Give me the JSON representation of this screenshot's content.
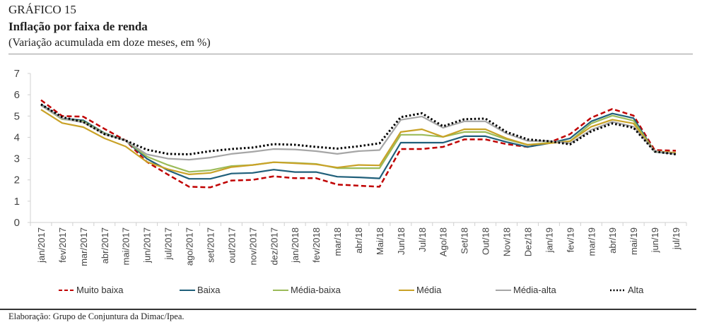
{
  "header": {
    "label": "GRÁFICO 15",
    "title": "Inflação por faixa de renda",
    "subtitle": "(Variação acumulada em doze meses, em %)"
  },
  "footer": "Elaboração: Grupo de Conjuntura da Dimac/Ipea.",
  "chart_data": {
    "type": "line",
    "title": "Inflação por faixa de renda",
    "subtitle": "(Variação acumulada em doze meses, em %)",
    "xlabel": "",
    "ylabel": "",
    "ylim": [
      0,
      7
    ],
    "yticks": [
      "0",
      "1",
      "2",
      "3",
      "4",
      "5",
      "6",
      "7"
    ],
    "grid": false,
    "legend_position": "bottom",
    "categories": [
      "jan/2017",
      "fev/2017",
      "mar/2017",
      "abr/2017",
      "mai/2017",
      "jun/2017",
      "jul/2017",
      "ago/2017",
      "set/2017",
      "out/2017",
      "nov/2017",
      "dez/2017",
      "jan/2018",
      "fev/2018",
      "mar/18",
      "abr/18",
      "Mai/18",
      "Jun/18",
      "Jul/18",
      "Ago/18",
      "Set/18",
      "Out/18",
      "Nov/18",
      "Dez/18",
      "jan/19",
      "fev/19",
      "mar/19",
      "abr/19",
      "mai/19",
      "jun/19",
      "jul/19"
    ],
    "series": [
      {
        "name": "Muito baixa",
        "color": "#c00000",
        "style": "dashed",
        "values": [
          5.75,
          5.0,
          4.97,
          4.4,
          3.85,
          2.85,
          2.25,
          1.68,
          1.65,
          1.97,
          2.0,
          2.17,
          2.08,
          2.08,
          1.78,
          1.73,
          1.68,
          3.45,
          3.45,
          3.55,
          3.9,
          3.9,
          3.68,
          3.55,
          3.75,
          4.15,
          4.92,
          5.33,
          5.02,
          3.4,
          3.37
        ]
      },
      {
        "name": "Baixa",
        "color": "#1f5f7a",
        "style": "solid",
        "values": [
          5.55,
          4.88,
          4.8,
          4.2,
          3.85,
          3.0,
          2.45,
          2.05,
          2.05,
          2.3,
          2.33,
          2.48,
          2.37,
          2.37,
          2.15,
          2.12,
          2.07,
          3.75,
          3.75,
          3.75,
          4.05,
          4.05,
          3.78,
          3.55,
          3.72,
          3.95,
          4.75,
          5.12,
          4.9,
          3.32,
          3.22
        ]
      },
      {
        "name": "Média-baixa",
        "color": "#9bbb59",
        "style": "solid",
        "values": [
          5.5,
          4.85,
          4.75,
          4.18,
          3.85,
          3.1,
          2.7,
          2.38,
          2.45,
          2.65,
          2.7,
          2.83,
          2.8,
          2.75,
          2.55,
          2.55,
          2.55,
          4.12,
          4.12,
          4.02,
          4.25,
          4.25,
          3.9,
          3.65,
          3.75,
          3.82,
          4.65,
          5.02,
          4.78,
          3.33,
          3.25
        ]
      },
      {
        "name": "Média",
        "color": "#c9a227",
        "style": "solid",
        "values": [
          5.3,
          4.67,
          4.48,
          3.95,
          3.57,
          2.85,
          2.5,
          2.26,
          2.33,
          2.6,
          2.7,
          2.83,
          2.78,
          2.73,
          2.58,
          2.7,
          2.68,
          4.25,
          4.38,
          4.02,
          4.38,
          4.38,
          3.95,
          3.65,
          3.72,
          3.82,
          4.5,
          4.83,
          4.65,
          3.35,
          3.27
        ]
      },
      {
        "name": "Média-alta",
        "color": "#a6a6a6",
        "style": "solid",
        "values": [
          5.5,
          4.88,
          4.7,
          4.15,
          3.85,
          3.2,
          3.0,
          2.95,
          3.05,
          3.22,
          3.32,
          3.45,
          3.43,
          3.35,
          3.22,
          3.35,
          3.4,
          4.82,
          4.98,
          4.45,
          4.75,
          4.75,
          4.18,
          3.83,
          3.83,
          3.72,
          4.35,
          4.73,
          4.5,
          3.35,
          3.22
        ]
      },
      {
        "name": "Alta",
        "color": "#000000",
        "style": "dotted",
        "values": [
          5.55,
          4.95,
          4.72,
          4.15,
          3.85,
          3.42,
          3.22,
          3.2,
          3.35,
          3.45,
          3.52,
          3.68,
          3.65,
          3.55,
          3.47,
          3.58,
          3.72,
          4.95,
          5.13,
          4.52,
          4.85,
          4.88,
          4.25,
          3.9,
          3.82,
          3.67,
          4.28,
          4.65,
          4.45,
          3.33,
          3.2
        ]
      }
    ]
  }
}
